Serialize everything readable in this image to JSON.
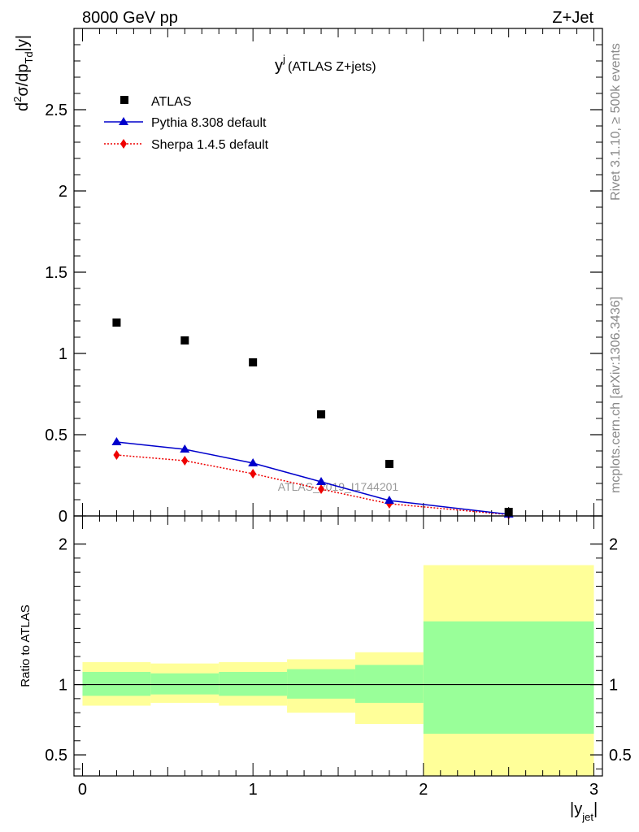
{
  "header": {
    "left": "8000 GeV pp",
    "right": "Z+Jet"
  },
  "side_text": {
    "rivet": "Rivet 3.1.10, ≥ 500k events",
    "mcplots": "mcplots.cern.ch [arXiv:1306.3436]"
  },
  "colors": {
    "data": "#000000",
    "pythia": "#0000cc",
    "sherpa": "#ee0000",
    "band_inner": "#99ff99",
    "band_outer": "#ffff99"
  },
  "chart_data": [
    {
      "type": "scatter",
      "panel": "main",
      "title_main": "y",
      "title_sup": "j",
      "title_rest": " (ATLAS Z+jets)",
      "watermark": "ATLAS_2019_I1744201",
      "ylabel": "d²σ/dp_Td|y|",
      "ylim": [
        0,
        3.0
      ],
      "xlim": [
        -0.05,
        3.05
      ],
      "yticks": [
        {
          "value": 0,
          "label": "0"
        },
        {
          "value": 0.5,
          "label": "0.5"
        },
        {
          "value": 1,
          "label": "1"
        },
        {
          "value": 1.5,
          "label": "1.5"
        },
        {
          "value": 2,
          "label": "2"
        },
        {
          "value": 2.5,
          "label": "2.5"
        }
      ],
      "legend": {
        "position": "top-left",
        "entries": [
          {
            "label": "ATLAS",
            "marker": "square"
          },
          {
            "label": "Pythia 8.308 default",
            "marker": "triangle"
          },
          {
            "label": "Sherpa 1.4.5 default",
            "marker": "diamond"
          }
        ]
      },
      "series": [
        {
          "name": "ATLAS",
          "x": [
            0.2,
            0.6,
            1.0,
            1.4,
            1.8,
            2.5
          ],
          "values": [
            1.19,
            1.08,
            0.945,
            0.625,
            0.32,
            0.025
          ]
        },
        {
          "name": "Pythia 8.308 default",
          "x": [
            0.2,
            0.6,
            1.0,
            1.4,
            1.8,
            2.5
          ],
          "values": [
            0.455,
            0.41,
            0.325,
            0.21,
            0.095,
            0.01
          ]
        },
        {
          "name": "Sherpa 1.4.5 default",
          "x": [
            0.2,
            0.6,
            1.0,
            1.4,
            1.8,
            2.5
          ],
          "values": [
            0.375,
            0.34,
            0.26,
            0.165,
            0.075,
            0.008
          ]
        }
      ]
    },
    {
      "type": "area",
      "panel": "ratio",
      "ylabel": "Ratio to ATLAS",
      "xlabel": "|y",
      "xlabel_sub": "jet",
      "xlabel_end": "|",
      "ylim": [
        0.35,
        2.2
      ],
      "xlim": [
        -0.05,
        3.05
      ],
      "yticks": [
        {
          "value": 0.5,
          "label": "0.5"
        },
        {
          "value": 1,
          "label": "1"
        },
        {
          "value": 2,
          "label": "2"
        }
      ],
      "xticks": [
        {
          "value": 0,
          "label": "0"
        },
        {
          "value": 1,
          "label": "1"
        },
        {
          "value": 2,
          "label": "2"
        },
        {
          "value": 3,
          "label": "3"
        }
      ],
      "reference_line": 1.0,
      "bins": [
        {
          "lo": 0.0,
          "hi": 0.4,
          "inner": [
            0.92,
            1.09
          ],
          "outer": [
            0.85,
            1.16
          ]
        },
        {
          "lo": 0.4,
          "hi": 0.8,
          "inner": [
            0.93,
            1.08
          ],
          "outer": [
            0.87,
            1.15
          ]
        },
        {
          "lo": 0.8,
          "hi": 1.2,
          "inner": [
            0.92,
            1.09
          ],
          "outer": [
            0.85,
            1.16
          ]
        },
        {
          "lo": 1.2,
          "hi": 1.6,
          "inner": [
            0.9,
            1.11
          ],
          "outer": [
            0.8,
            1.18
          ]
        },
        {
          "lo": 1.6,
          "hi": 2.0,
          "inner": [
            0.87,
            1.14
          ],
          "outer": [
            0.72,
            1.23
          ]
        },
        {
          "lo": 2.0,
          "hi": 3.0,
          "inner": [
            0.65,
            1.45
          ],
          "outer": [
            0.35,
            1.85
          ]
        }
      ]
    }
  ]
}
